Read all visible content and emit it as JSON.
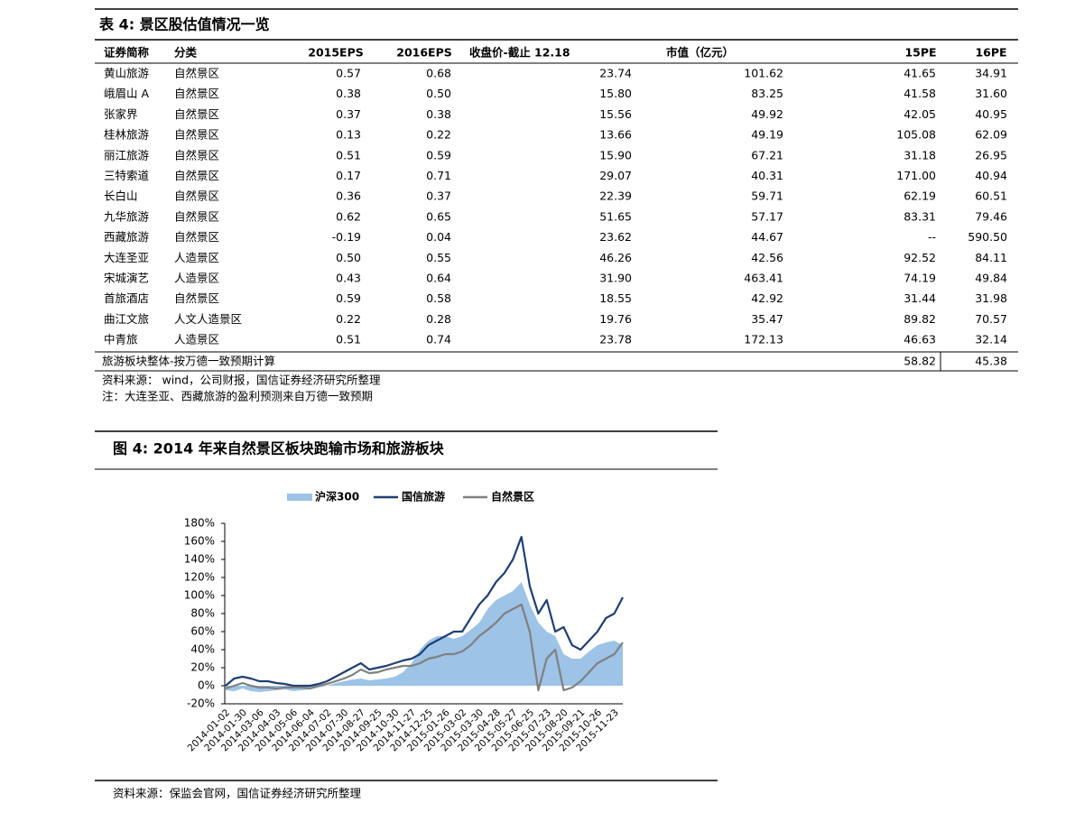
{
  "table": {
    "title": "表 4: 景区股估值情况一览",
    "header": [
      "证券简称",
      "分类",
      "2015EPS",
      "2016EPS",
      "收盘价-截止 12.18",
      "市值（亿元）",
      "15PE",
      "16PE"
    ],
    "rows": [
      [
        "黄山旅游",
        "自然景区",
        "0.57",
        "0.68",
        "23.74",
        "101.62",
        "41.65",
        "34.91"
      ],
      [
        "峨眉山 A",
        "自然景区",
        "0.38",
        "0.50",
        "15.80",
        "83.25",
        "41.58",
        "31.60"
      ],
      [
        "张家界",
        "自然景区",
        "0.37",
        "0.38",
        "15.56",
        "49.92",
        "42.05",
        "40.95"
      ],
      [
        "桂林旅游",
        "自然景区",
        "0.13",
        "0.22",
        "13.66",
        "49.19",
        "105.08",
        "62.09"
      ],
      [
        "丽江旅游",
        "自然景区",
        "0.51",
        "0.59",
        "15.90",
        "67.21",
        "31.18",
        "26.95"
      ],
      [
        "三特索道",
        "自然景区",
        "0.17",
        "0.71",
        "29.07",
        "40.31",
        "171.00",
        "40.94"
      ],
      [
        "长白山",
        "自然景区",
        "0.36",
        "0.37",
        "22.39",
        "59.71",
        "62.19",
        "60.51"
      ],
      [
        "九华旅游",
        "自然景区",
        "0.62",
        "0.65",
        "51.65",
        "57.17",
        "83.31",
        "79.46"
      ],
      [
        "西藏旅游",
        "自然景区",
        "-0.19",
        "0.04",
        "23.62",
        "44.67",
        "--",
        "590.50"
      ],
      [
        "大连圣亚",
        "人造景区",
        "0.50",
        "0.55",
        "46.26",
        "42.56",
        "92.52",
        "84.11"
      ],
      [
        "宋城演艺",
        "人造景区",
        "0.43",
        "0.64",
        "31.90",
        "463.41",
        "74.19",
        "49.84"
      ],
      [
        "首旅酒店",
        "自然景区",
        "0.59",
        "0.58",
        "18.55",
        "42.92",
        "31.44",
        "31.98"
      ],
      [
        "曲江文旅",
        "人文人造景区",
        "0.22",
        "0.28",
        "19.76",
        "35.47",
        "89.82",
        "70.57"
      ],
      [
        "中青旅",
        "人造景区",
        "0.51",
        "0.74",
        "23.78",
        "172.13",
        "46.63",
        "32.14"
      ]
    ],
    "summary": [
      "旅游板块整体-按万德一致预期计算",
      "58.82",
      "45.38"
    ],
    "source": "资料来源： wind，公司财报，国信证券经济研究所整理",
    "note": "注：大连圣亚、西藏旅游的盈利预测来自万德一致预期"
  },
  "figure": {
    "title": "图 4: 2014 年来自然景区板块跑输市场和旅游板块",
    "source": "资料来源：保监会官网，国信证券经济研究所整理"
  },
  "chart_data": {
    "type": "line",
    "categories": [
      "2014-01-02",
      null,
      "2014-01-30",
      null,
      "2014-03-06",
      null,
      "2014-04-03",
      null,
      "2014-05-06",
      null,
      "2014-06-04",
      null,
      "2014-07-02",
      null,
      "2014-07-30",
      null,
      "2014-08-27",
      null,
      "2014-09-25",
      null,
      "2014-10-30",
      null,
      "2014-11-27",
      null,
      "2014-12-25",
      null,
      "2015-01-26",
      null,
      "2015-03-02",
      null,
      "2015-03-30",
      null,
      "2015-04-28",
      null,
      "2015-05-27",
      null,
      "2015-06-25",
      null,
      "2015-07-23",
      null,
      "2015-08-20",
      null,
      "2015-09-21",
      null,
      "2015-10-26",
      null,
      "2015-11-23",
      null
    ],
    "series": [
      {
        "name": "沪深300",
        "color": "#9dc3e6",
        "style": "area",
        "values": [
          -5,
          -6,
          -3,
          -6,
          -7,
          -6,
          -5,
          -4,
          -6,
          -5,
          -4,
          -2,
          0,
          3,
          5,
          7,
          8,
          6,
          7,
          8,
          10,
          15,
          25,
          40,
          50,
          55,
          55,
          52,
          55,
          62,
          70,
          85,
          95,
          100,
          105,
          115,
          90,
          70,
          60,
          55,
          35,
          30,
          30,
          38,
          45,
          48,
          50,
          45
        ]
      },
      {
        "name": "国信旅游",
        "color": "#1f3f73",
        "style": "line",
        "values": [
          0,
          8,
          10,
          8,
          5,
          5,
          3,
          2,
          0,
          0,
          0,
          2,
          5,
          10,
          15,
          20,
          25,
          18,
          20,
          22,
          25,
          28,
          30,
          35,
          45,
          50,
          55,
          60,
          60,
          75,
          90,
          100,
          115,
          125,
          140,
          165,
          110,
          80,
          95,
          60,
          65,
          45,
          40,
          50,
          60,
          75,
          80,
          98
        ]
      },
      {
        "name": "自然景区",
        "color": "#808080",
        "style": "line",
        "values": [
          -3,
          0,
          3,
          0,
          -2,
          -2,
          -3,
          -2,
          -2,
          -2,
          -3,
          0,
          2,
          5,
          8,
          12,
          18,
          14,
          15,
          18,
          20,
          22,
          22,
          25,
          30,
          32,
          35,
          35,
          38,
          45,
          55,
          62,
          70,
          80,
          85,
          90,
          60,
          -5,
          30,
          40,
          -5,
          -2,
          5,
          15,
          25,
          30,
          35,
          48
        ]
      }
    ],
    "ylim": [
      -20,
      180
    ],
    "yticks": [
      {
        "value": -20,
        "label": "-20%"
      },
      {
        "value": 0,
        "label": "0%"
      },
      {
        "value": 20,
        "label": "20%"
      },
      {
        "value": 40,
        "label": "40%"
      },
      {
        "value": 60,
        "label": "60%"
      },
      {
        "value": 80,
        "label": "80%"
      },
      {
        "value": 100,
        "label": "100%"
      },
      {
        "value": 120,
        "label": "120%"
      },
      {
        "value": 140,
        "label": "140%"
      },
      {
        "value": 160,
        "label": "160%"
      },
      {
        "value": 180,
        "label": "180%"
      }
    ],
    "legend": "top"
  }
}
